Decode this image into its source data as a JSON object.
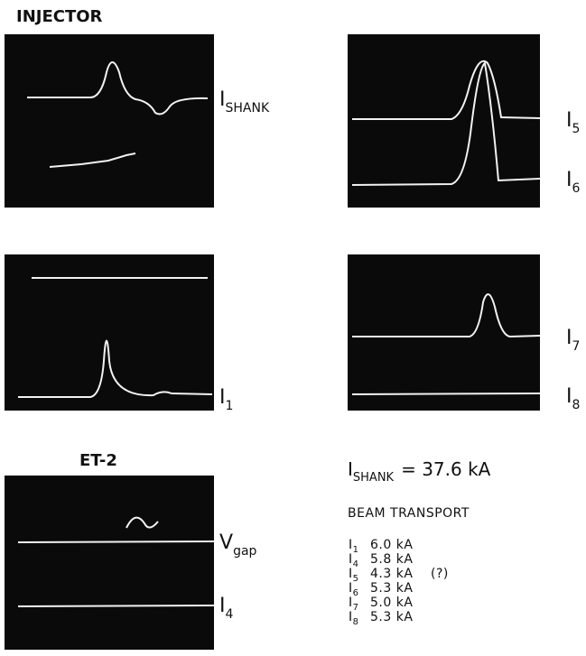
{
  "headings": {
    "injector": "INJECTOR",
    "et2": "ET-2"
  },
  "trace_labels": [
    {
      "main": "I",
      "sub": "SHANK"
    },
    {
      "main": "I",
      "sub": "5"
    },
    {
      "main": "I",
      "sub": "6"
    },
    {
      "main": "I",
      "sub": "1"
    },
    {
      "main": "I",
      "sub": "7"
    },
    {
      "main": "I",
      "sub": "8"
    },
    {
      "main": "V",
      "sub": "gap"
    },
    {
      "main": "I",
      "sub": "4"
    }
  ],
  "summary": {
    "main": "I",
    "sub": "SHANK",
    "rest": "= 37.6 kA"
  },
  "beam_transport": {
    "title": "BEAM TRANSPORT",
    "rows": [
      {
        "main": "I",
        "sub": "1",
        "value": "6.0 kA"
      },
      {
        "main": "I",
        "sub": "4",
        "value": "5.8 kA"
      },
      {
        "main": "I",
        "sub": "5",
        "value": "4.3 kA",
        "note": "(?)"
      },
      {
        "main": "I",
        "sub": "6",
        "value": "5.3 kA"
      },
      {
        "main": "I",
        "sub": "7",
        "value": "5.0 kA"
      },
      {
        "main": "I",
        "sub": "8",
        "value": "5.3 kA"
      }
    ]
  }
}
